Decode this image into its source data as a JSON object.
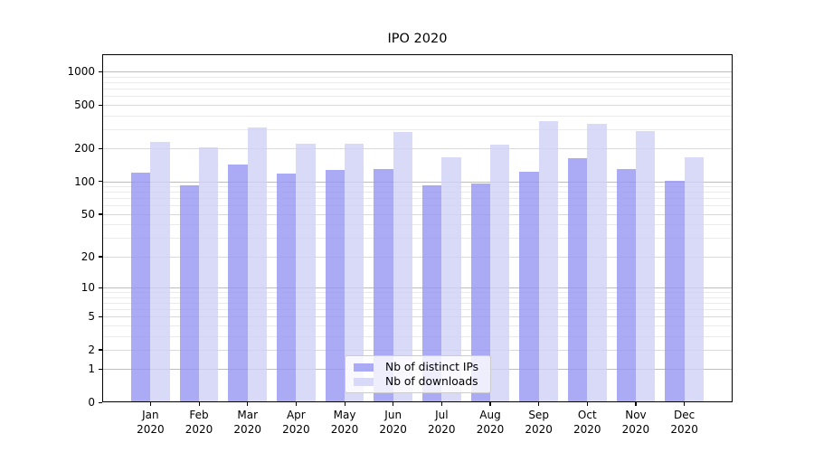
{
  "chart_data": {
    "type": "bar",
    "title": "IPO 2020",
    "categories": [
      "Jan 2020",
      "Feb 2020",
      "Mar 2020",
      "Apr 2020",
      "May 2020",
      "Jun 2020",
      "Jul 2020",
      "Aug 2020",
      "Sep 2020",
      "Oct 2020",
      "Nov 2020",
      "Dec 2020"
    ],
    "series": [
      {
        "name": "Nb of distinct IPs",
        "color": "rgba(150,150,243,0.8)",
        "values": [
          121,
          92,
          143,
          119,
          128,
          129,
          93,
          96,
          123,
          162,
          130,
          101
        ]
      },
      {
        "name": "Nb of downloads",
        "color": "rgba(207,207,246,0.8)",
        "values": [
          228,
          205,
          310,
          222,
          223,
          283,
          168,
          218,
          355,
          338,
          290,
          165
        ]
      }
    ],
    "yscale": "log1p",
    "ylim": [
      0,
      1430
    ],
    "yticks": [
      1000,
      500,
      200,
      100,
      50,
      20,
      10,
      5,
      2,
      1,
      0
    ],
    "grid_minor": [
      3,
      4,
      6,
      7,
      8,
      9,
      30,
      40,
      60,
      70,
      80,
      90,
      300,
      400,
      600,
      700,
      800,
      900
    ],
    "grid_mid": [
      2,
      5,
      20,
      50,
      200,
      500
    ],
    "grid_major": [
      1,
      10,
      100,
      1000
    ],
    "colors": {
      "grid_minor": "#eaeaea",
      "grid_mid": "#d9d9d9",
      "grid_major": "#bdbdbd",
      "axis": "#000000",
      "text": "#000000"
    },
    "legend_position": "lower center",
    "grid": true
  }
}
